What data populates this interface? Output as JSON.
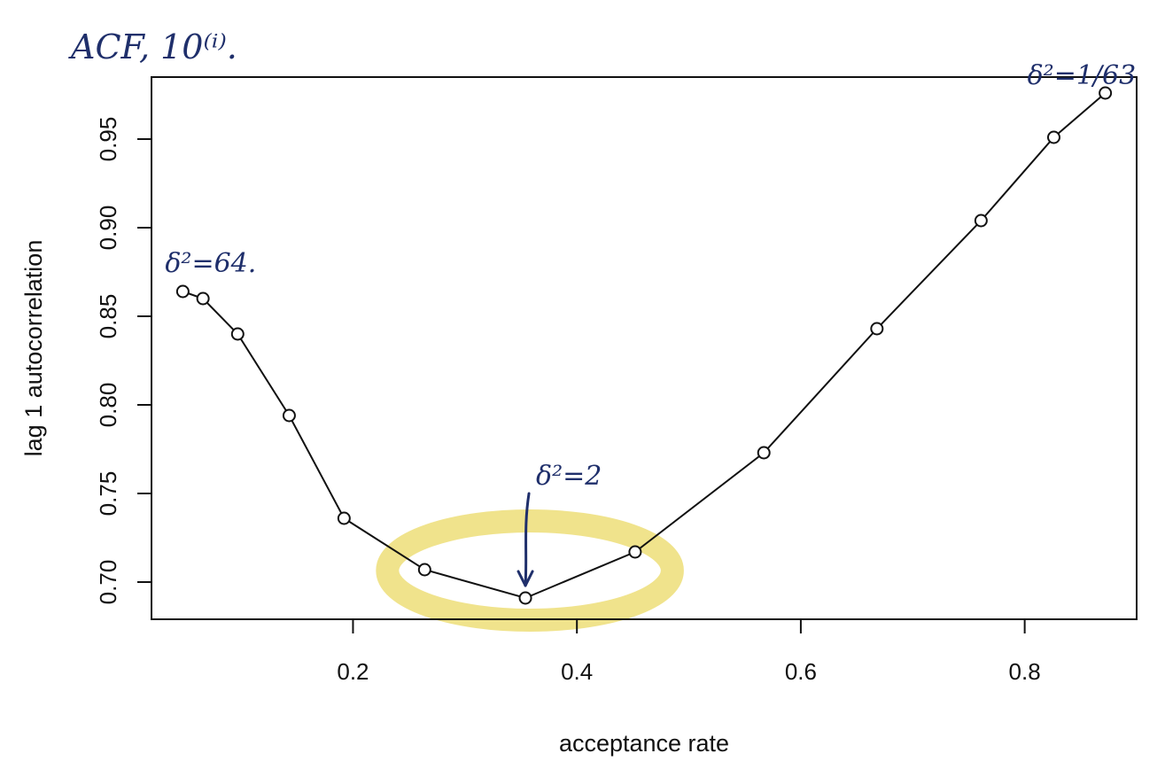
{
  "chart_data": {
    "type": "line",
    "xlabel": "acceptance rate",
    "ylabel": "lag 1 autocorrelation",
    "xlim": [
      0.02,
      0.9
    ],
    "ylim": [
      0.679,
      0.985
    ],
    "xticks": [
      0.2,
      0.4,
      0.6,
      0.8
    ],
    "yticks": [
      0.7,
      0.75,
      0.8,
      0.85,
      0.9,
      0.95
    ],
    "xtick_labels": [
      "0.2",
      "0.4",
      "0.6",
      "0.8"
    ],
    "ytick_labels": [
      "0.70",
      "0.75",
      "0.80",
      "0.85",
      "0.90",
      "0.95"
    ],
    "markers": "open-circle",
    "grid": false,
    "series": [
      {
        "x": [
          0.048,
          0.066,
          0.097,
          0.143,
          0.192,
          0.264,
          0.354,
          0.452,
          0.567,
          0.668,
          0.761,
          0.826,
          0.872
        ],
        "y": [
          0.864,
          0.86,
          0.84,
          0.794,
          0.736,
          0.707,
          0.691,
          0.717,
          0.773,
          0.843,
          0.904,
          0.951,
          0.976
        ]
      }
    ],
    "annotations": [
      {
        "text": "ACF, 10⁽ⁱ⁾.",
        "kind": "handwritten-title"
      },
      {
        "text": "δ²=64.",
        "kind": "handwritten-label",
        "point_index": 0
      },
      {
        "text": "δ²=2",
        "kind": "handwritten-label-with-arrow",
        "point_index": 6
      },
      {
        "text": "δ²=1/63",
        "kind": "handwritten-label",
        "point_index": 12
      },
      {
        "kind": "highlight-ellipse",
        "color": "#efe286",
        "points": [
          5,
          6,
          7
        ]
      }
    ],
    "colors": {
      "line": "#111111",
      "highlight": "#efe286",
      "ink": "#1f2f6b"
    }
  }
}
